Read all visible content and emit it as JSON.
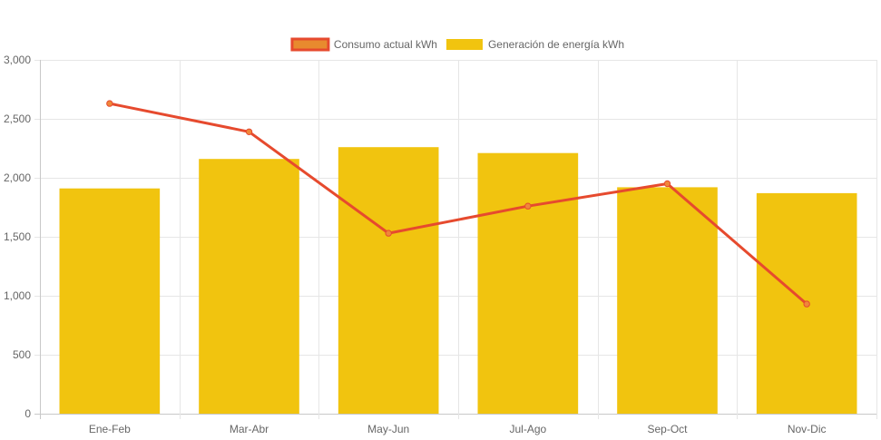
{
  "chart_data": {
    "type": "bar",
    "categories": [
      "Ene-Feb",
      "Mar-Abr",
      "May-Jun",
      "Jul-Ago",
      "Sep-Oct",
      "Nov-Dic"
    ],
    "series": [
      {
        "name": "Consumo actual kWh",
        "type": "line",
        "color": "#e64a2e",
        "values": [
          2630,
          2390,
          1530,
          1760,
          1950,
          930
        ]
      },
      {
        "name": "Generación de energía kWh",
        "type": "bar",
        "color": "#f1c40f",
        "values": [
          1910,
          2160,
          2260,
          2210,
          1920,
          1870
        ]
      }
    ],
    "y_ticks": [
      "0",
      "500",
      "1,000",
      "1,500",
      "2,000",
      "2,500",
      "3,000"
    ],
    "ylim": [
      0,
      3000
    ],
    "grid": true,
    "legend_position": "top-center"
  }
}
